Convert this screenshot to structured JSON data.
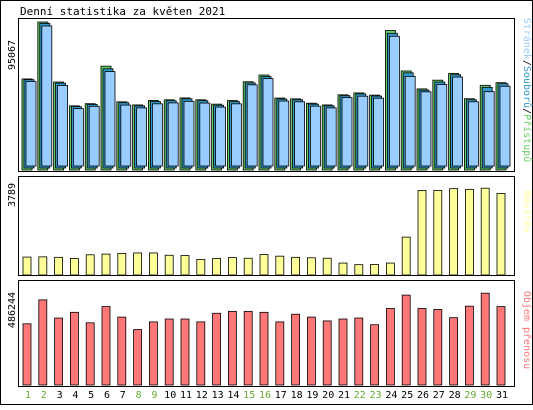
{
  "title": "Denní statistika za květen 2021",
  "colors": {
    "border": "#000000",
    "background": "#ffffff",
    "hits": "#66cc66",
    "files": "#3399cc",
    "pages": "#99ccff",
    "visits": "#ffff99",
    "kbytes": "#ff7777",
    "day_weekday": "#000000",
    "day_weekend": "#66aa33"
  },
  "chart_data": [
    {
      "type": "bar",
      "categories": [
        "1",
        "2",
        "3",
        "4",
        "5",
        "6",
        "7",
        "8",
        "9",
        "10",
        "11",
        "12",
        "13",
        "14",
        "15",
        "16",
        "17",
        "18",
        "19",
        "20",
        "21",
        "22",
        "23",
        "24",
        "25",
        "26",
        "27",
        "28",
        "29",
        "30",
        "31"
      ],
      "weekend_days": [
        "1",
        "2",
        "8",
        "9",
        "15",
        "16",
        "22",
        "23",
        "29",
        "30"
      ],
      "ymax_label": "95067",
      "ylim": [
        0,
        95067
      ],
      "legend": [
        "Přístupů",
        "/",
        "Souborů",
        "/",
        "Stránek"
      ],
      "series": [
        {
          "name": "Přístupů",
          "color": "#66cc66",
          "values": [
            58500,
            95067,
            56500,
            41200,
            42600,
            66700,
            43800,
            41800,
            44700,
            45100,
            46300,
            45100,
            42300,
            44600,
            56700,
            61000,
            46200,
            45700,
            42900,
            41800,
            48300,
            49500,
            48100,
            89600,
            63600,
            52100,
            57700,
            62000,
            45800,
            54400,
            56100
          ]
        },
        {
          "name": "Souborů",
          "color": "#3399cc",
          "values": [
            58000,
            94200,
            55800,
            40700,
            42100,
            65000,
            43200,
            41200,
            44000,
            44500,
            45700,
            44500,
            41600,
            43900,
            55900,
            60000,
            45600,
            45100,
            42300,
            41200,
            47700,
            48900,
            47500,
            87800,
            62400,
            51300,
            56500,
            61200,
            45100,
            53100,
            55400
          ]
        },
        {
          "name": "Stránek",
          "color": "#99ccff",
          "values": [
            56800,
            92500,
            54300,
            39400,
            40900,
            63200,
            41700,
            39900,
            42500,
            43100,
            44100,
            43000,
            40400,
            42500,
            54700,
            58700,
            44300,
            43800,
            41000,
            39900,
            46500,
            47400,
            46100,
            85900,
            60100,
            50200,
            54900,
            59700,
            43800,
            50300,
            53800
          ]
        }
      ]
    },
    {
      "type": "bar",
      "categories": [
        "1",
        "2",
        "3",
        "4",
        "5",
        "6",
        "7",
        "8",
        "9",
        "10",
        "11",
        "12",
        "13",
        "14",
        "15",
        "16",
        "17",
        "18",
        "19",
        "20",
        "21",
        "22",
        "23",
        "24",
        "25",
        "26",
        "27",
        "28",
        "29",
        "30",
        "31"
      ],
      "ymax_label": "3789",
      "ylim": [
        0,
        3789
      ],
      "legend": [
        "Návštěv"
      ],
      "series": [
        {
          "name": "Návštěv",
          "color": "#ffff99",
          "values": [
            780,
            790,
            770,
            720,
            880,
            910,
            940,
            960,
            960,
            860,
            850,
            680,
            720,
            760,
            730,
            890,
            820,
            770,
            750,
            730,
            520,
            450,
            460,
            520,
            1650,
            3680,
            3680,
            3760,
            3730,
            3780,
            3550
          ]
        }
      ]
    },
    {
      "type": "bar",
      "categories": [
        "1",
        "2",
        "3",
        "4",
        "5",
        "6",
        "7",
        "8",
        "9",
        "10",
        "11",
        "12",
        "13",
        "14",
        "15",
        "16",
        "17",
        "18",
        "19",
        "20",
        "21",
        "22",
        "23",
        "24",
        "25",
        "26",
        "27",
        "28",
        "29",
        "30",
        "31"
      ],
      "ymax_label": "486244",
      "ylim": [
        0,
        486244
      ],
      "legend": [
        "Objem přenosu"
      ],
      "series": [
        {
          "name": "Objem přenosu",
          "color": "#ff7777",
          "values": [
            320000,
            445000,
            350000,
            380000,
            325000,
            410000,
            355000,
            290000,
            330000,
            345000,
            345000,
            330000,
            375000,
            385000,
            385000,
            380000,
            330000,
            370000,
            355000,
            335000,
            345000,
            350000,
            315000,
            400000,
            470000,
            400000,
            395000,
            352000,
            412000,
            480000,
            410000
          ]
        }
      ]
    }
  ]
}
